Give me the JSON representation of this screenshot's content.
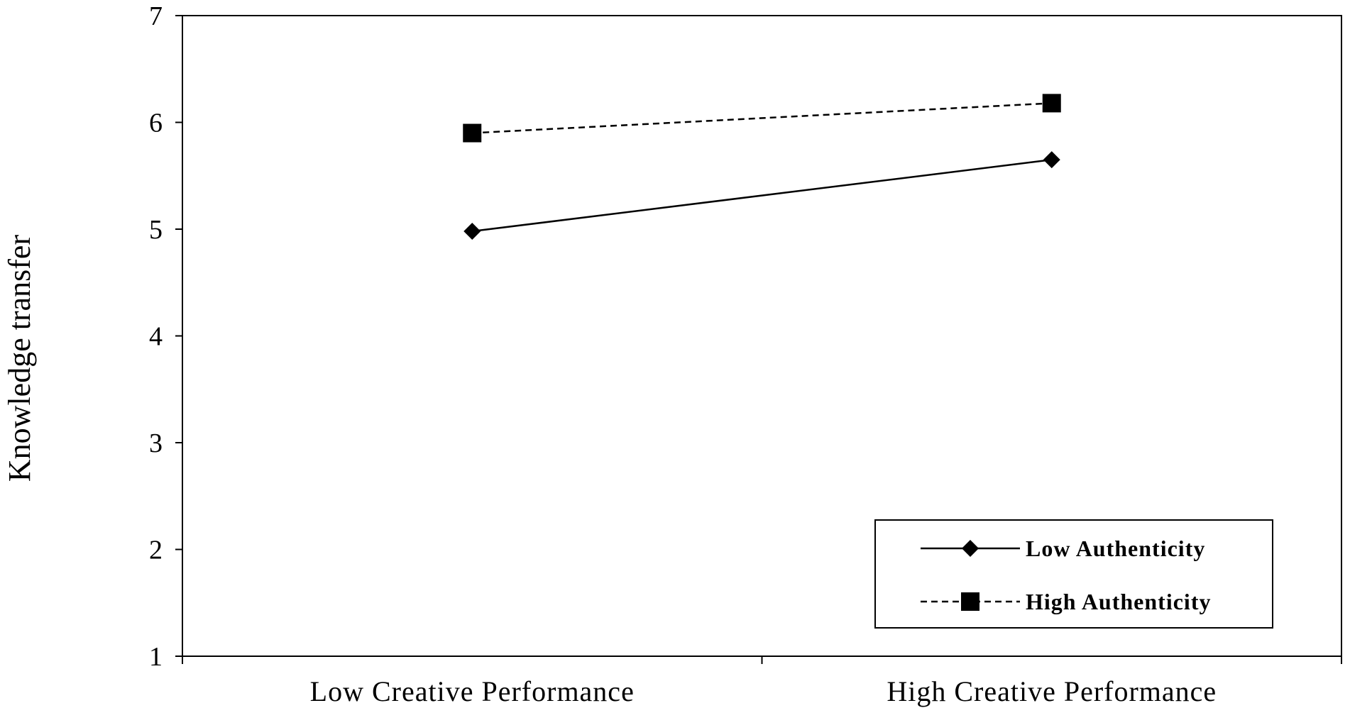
{
  "chart_data": {
    "type": "line",
    "title": "",
    "xlabel": "",
    "ylabel": "Knowledge transfer",
    "categories": [
      "Low Creative Performance",
      "High Creative Performance"
    ],
    "ylim": [
      1,
      7
    ],
    "yticks": [
      1,
      2,
      3,
      4,
      5,
      6,
      7
    ],
    "grid": false,
    "legend_position": "bottom-right",
    "series": [
      {
        "name": "Low Authenticity",
        "values": [
          4.98,
          5.65
        ],
        "marker": "diamond",
        "line": "solid",
        "color": "#000000"
      },
      {
        "name": "High Authenticity",
        "values": [
          5.9,
          6.18
        ],
        "marker": "square",
        "line": "dashed",
        "color": "#000000"
      }
    ]
  }
}
